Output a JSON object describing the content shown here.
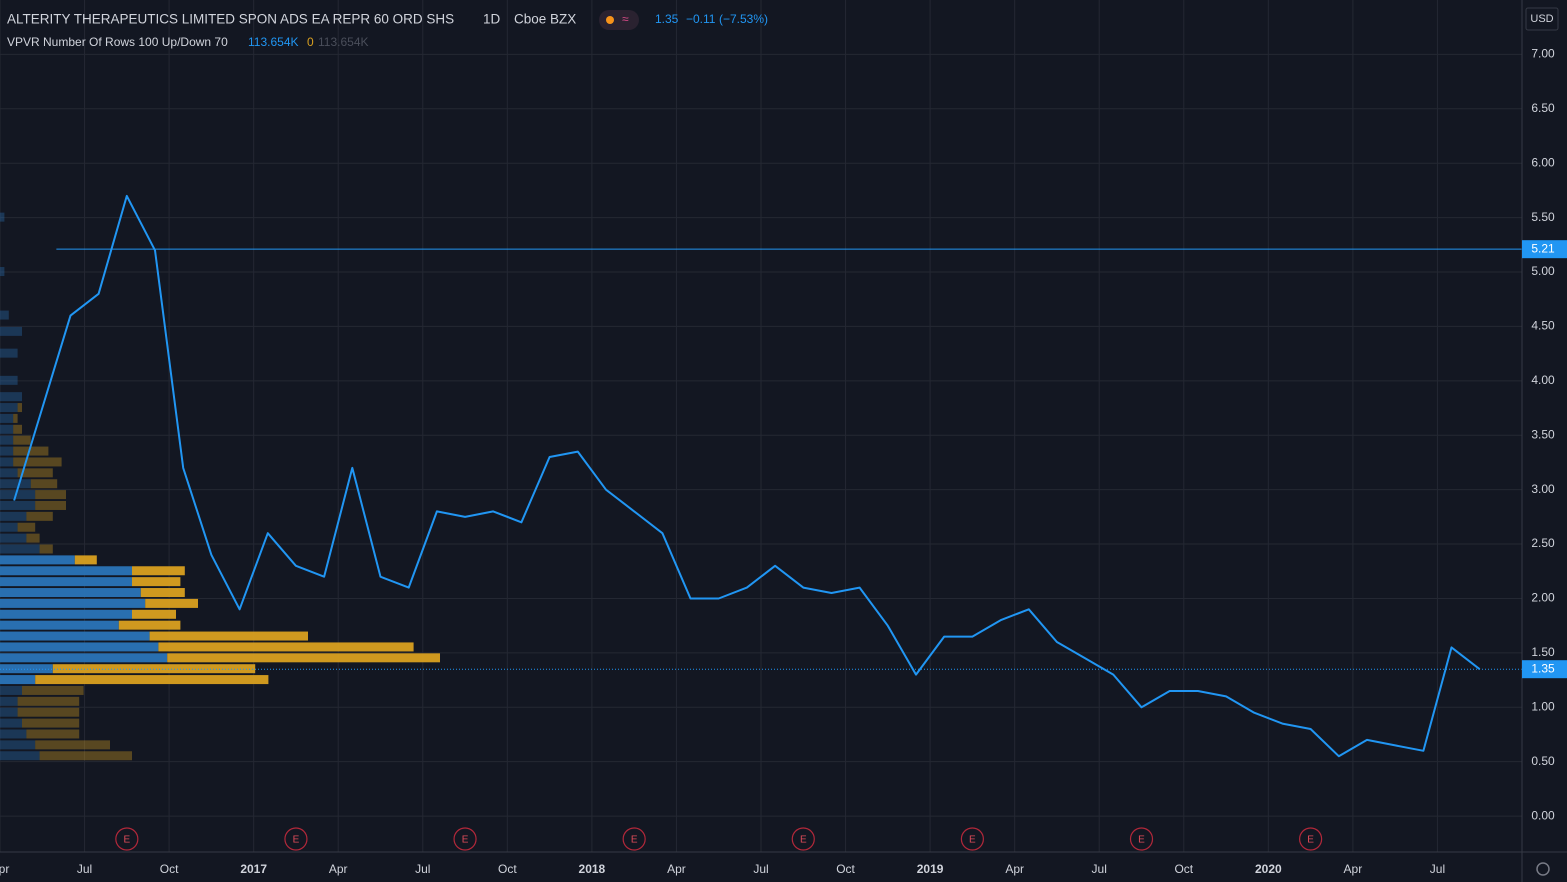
{
  "chart_data": {
    "type": "line",
    "title": "ALTERITY THERAPEUTICS LIMITED SPON ADS EA REPR 60 ORD SHS",
    "interval": "1D",
    "exchange": "Cboe BZX",
    "last": "1.35",
    "change": "−0.11",
    "change_pct": "(−7.53%)",
    "indicator": "VPVR Number Of Rows 100 Up/Down 70",
    "indicator_values": [
      "113.654K",
      "0",
      "113.654K"
    ],
    "currency": "USD",
    "x": [
      "2016-04",
      "2016-05",
      "2016-06",
      "2016-07",
      "2016-08",
      "2016-09",
      "2016-10",
      "2016-11",
      "2016-12",
      "2017-01",
      "2017-02",
      "2017-03",
      "2017-04",
      "2017-05",
      "2017-06",
      "2017-07",
      "2017-08",
      "2017-09",
      "2017-10",
      "2017-11",
      "2017-12",
      "2018-01",
      "2018-02",
      "2018-03",
      "2018-04",
      "2018-05",
      "2018-06",
      "2018-07",
      "2018-08",
      "2018-09",
      "2018-10",
      "2018-11",
      "2018-12",
      "2019-01",
      "2019-02",
      "2019-03",
      "2019-04",
      "2019-05",
      "2019-06",
      "2019-07",
      "2019-08",
      "2019-09",
      "2019-10",
      "2019-11",
      "2019-12",
      "2020-01",
      "2020-02",
      "2020-03",
      "2020-04",
      "2020-05",
      "2020-06",
      "2020-07",
      "2020-08"
    ],
    "series": [
      {
        "name": "Price",
        "color": "#2196f3",
        "values": [
          2.9,
          3.75,
          4.6,
          4.8,
          5.7,
          5.2,
          3.2,
          2.4,
          1.9,
          2.6,
          2.3,
          2.2,
          3.2,
          2.2,
          2.1,
          2.8,
          2.75,
          2.8,
          2.7,
          3.3,
          3.35,
          3.0,
          2.8,
          2.6,
          2.0,
          2.0,
          2.1,
          2.3,
          2.1,
          2.05,
          2.1,
          1.75,
          1.3,
          1.65,
          1.65,
          1.8,
          1.9,
          1.6,
          1.45,
          1.3,
          1.0,
          1.15,
          1.15,
          1.1,
          0.95,
          0.85,
          0.8,
          0.55,
          0.7,
          0.65,
          0.6,
          1.55,
          1.35
        ]
      }
    ],
    "xlim": [
      "2016-04",
      "2020-10"
    ],
    "xticks": [
      {
        "value": "2016-04",
        "label": "Apr"
      },
      {
        "value": "2016-07",
        "label": "Jul"
      },
      {
        "value": "2016-10",
        "label": "Oct"
      },
      {
        "value": "2017-01",
        "label": "2017"
      },
      {
        "value": "2017-04",
        "label": "Apr"
      },
      {
        "value": "2017-07",
        "label": "Jul"
      },
      {
        "value": "2017-10",
        "label": "Oct"
      },
      {
        "value": "2018-01",
        "label": "2018"
      },
      {
        "value": "2018-04",
        "label": "Apr"
      },
      {
        "value": "2018-07",
        "label": "Jul"
      },
      {
        "value": "2018-10",
        "label": "Oct"
      },
      {
        "value": "2019-01",
        "label": "2019"
      },
      {
        "value": "2019-04",
        "label": "Apr"
      },
      {
        "value": "2019-07",
        "label": "Jul"
      },
      {
        "value": "2019-10",
        "label": "Oct"
      },
      {
        "value": "2020-01",
        "label": "2020"
      },
      {
        "value": "2020-04",
        "label": "Apr"
      },
      {
        "value": "2020-07",
        "label": "Jul"
      }
    ],
    "ylim": [
      -0.33,
      7.5
    ],
    "yticks": [
      {
        "value": 0,
        "label": "0.00"
      },
      {
        "value": 0.5,
        "label": "0.50"
      },
      {
        "value": 1,
        "label": "1.00"
      },
      {
        "value": 1.5,
        "label": "1.50"
      },
      {
        "value": 2,
        "label": "2.00"
      },
      {
        "value": 2.5,
        "label": "2.50"
      },
      {
        "value": 3,
        "label": "3.00"
      },
      {
        "value": 3.5,
        "label": "3.50"
      },
      {
        "value": 4,
        "label": "4.00"
      },
      {
        "value": 4.5,
        "label": "4.50"
      },
      {
        "value": 5,
        "label": "5.00"
      },
      {
        "value": 5.5,
        "label": "5.50"
      },
      {
        "value": 6,
        "label": "6.00"
      },
      {
        "value": 6.5,
        "label": "6.50"
      },
      {
        "value": 7,
        "label": "7.00"
      }
    ],
    "grid": true,
    "price_lines": [
      {
        "value": 5.21,
        "style": "solid",
        "from": "2016-06"
      },
      {
        "value": 1.35,
        "style": "dotted"
      }
    ],
    "earnings": [
      {
        "date": "2016-08",
        "label": "E"
      },
      {
        "date": "2017-02",
        "label": "E"
      },
      {
        "date": "2017-08",
        "label": "E"
      },
      {
        "date": "2018-02",
        "label": "E"
      },
      {
        "date": "2018-08",
        "label": "E"
      },
      {
        "date": "2019-02",
        "label": "E"
      },
      {
        "date": "2019-08",
        "label": "E"
      },
      {
        "date": "2020-02",
        "label": "E"
      }
    ],
    "volume_profile": {
      "up_color": "#2a74b8",
      "down_color": "#d9a020",
      "value_area": [
        1.2,
        2.4
      ],
      "rows": [
        {
          "price": 0.55,
          "up": 9,
          "down": 21
        },
        {
          "price": 0.65,
          "up": 8,
          "down": 17
        },
        {
          "price": 0.75,
          "up": 6,
          "down": 12
        },
        {
          "price": 0.85,
          "up": 5,
          "down": 13
        },
        {
          "price": 0.95,
          "up": 4,
          "down": 14
        },
        {
          "price": 1.05,
          "up": 4,
          "down": 14
        },
        {
          "price": 1.15,
          "up": 5,
          "down": 14
        },
        {
          "price": 1.25,
          "up": 8,
          "down": 53
        },
        {
          "price": 1.35,
          "up": 12,
          "down": 46
        },
        {
          "price": 1.45,
          "up": 38,
          "down": 62
        },
        {
          "price": 1.55,
          "up": 36,
          "down": 58
        },
        {
          "price": 1.65,
          "up": 34,
          "down": 36
        },
        {
          "price": 1.75,
          "up": 27,
          "down": 14
        },
        {
          "price": 1.85,
          "up": 30,
          "down": 10
        },
        {
          "price": 1.95,
          "up": 33,
          "down": 12
        },
        {
          "price": 2.05,
          "up": 32,
          "down": 10
        },
        {
          "price": 2.15,
          "up": 30,
          "down": 11
        },
        {
          "price": 2.25,
          "up": 30,
          "down": 12
        },
        {
          "price": 2.35,
          "up": 17,
          "down": 5
        },
        {
          "price": 2.45,
          "up": 9,
          "down": 3
        },
        {
          "price": 2.55,
          "up": 6,
          "down": 3
        },
        {
          "price": 2.65,
          "up": 4,
          "down": 4
        },
        {
          "price": 2.75,
          "up": 6,
          "down": 6
        },
        {
          "price": 2.85,
          "up": 8,
          "down": 7
        },
        {
          "price": 2.95,
          "up": 8,
          "down": 7
        },
        {
          "price": 3.05,
          "up": 7,
          "down": 6
        },
        {
          "price": 3.15,
          "up": 4,
          "down": 8
        },
        {
          "price": 3.25,
          "up": 3,
          "down": 11
        },
        {
          "price": 3.35,
          "up": 3,
          "down": 8
        },
        {
          "price": 3.45,
          "up": 3,
          "down": 4
        },
        {
          "price": 3.55,
          "up": 3,
          "down": 2
        },
        {
          "price": 3.65,
          "up": 3,
          "down": 1
        },
        {
          "price": 3.75,
          "up": 4,
          "down": 1
        },
        {
          "price": 3.85,
          "up": 5,
          "down": 0
        },
        {
          "price": 4.0,
          "up": 4,
          "down": 0
        },
        {
          "price": 4.25,
          "up": 4,
          "down": 0
        },
        {
          "price": 4.45,
          "up": 5,
          "down": 0
        },
        {
          "price": 4.6,
          "up": 2,
          "down": 0
        },
        {
          "price": 5.0,
          "up": 1,
          "down": 0
        },
        {
          "price": 5.5,
          "up": 1,
          "down": 0
        }
      ]
    }
  }
}
